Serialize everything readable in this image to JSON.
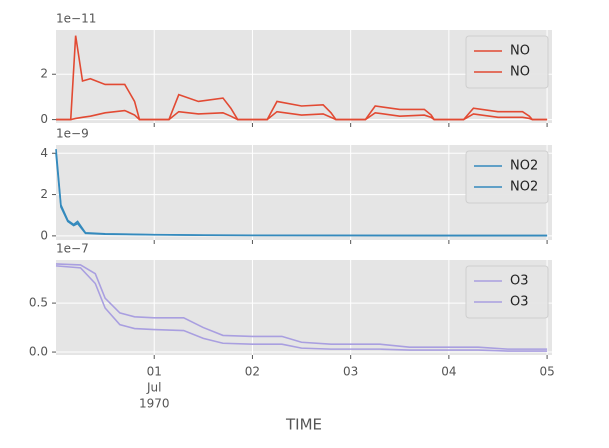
{
  "chart_data": [
    {
      "type": "line",
      "offset_label": "1e−11",
      "legend": "upper right",
      "x": [
        0,
        0.15,
        0.2,
        0.27,
        0.35,
        0.5,
        0.7,
        0.8,
        0.85,
        1.15,
        1.25,
        1.45,
        1.7,
        1.78,
        1.85,
        2.15,
        2.25,
        2.5,
        2.72,
        2.8,
        2.85,
        3.15,
        3.25,
        3.5,
        3.75,
        3.82,
        3.85,
        4.15,
        4.25,
        4.5,
        4.75,
        4.82,
        4.85,
        5.0
      ],
      "series": [
        {
          "name": "NO",
          "color": "#E24A33",
          "values": [
            0,
            0,
            3.7,
            1.7,
            1.8,
            1.55,
            1.55,
            0.8,
            0,
            0,
            1.1,
            0.8,
            0.95,
            0.5,
            0,
            0,
            0.8,
            0.6,
            0.65,
            0.3,
            0,
            0,
            0.6,
            0.45,
            0.45,
            0.2,
            0,
            0,
            0.5,
            0.35,
            0.35,
            0.15,
            0,
            0
          ]
        },
        {
          "name": "NO",
          "color": "#E24A33",
          "values": [
            0,
            0,
            0.05,
            0.1,
            0.15,
            0.3,
            0.4,
            0.2,
            0,
            0,
            0.35,
            0.25,
            0.3,
            0.15,
            0,
            0,
            0.35,
            0.2,
            0.25,
            0.1,
            0,
            0,
            0.3,
            0.15,
            0.2,
            0.1,
            0,
            0,
            0.25,
            0.1,
            0.1,
            0.05,
            0,
            0
          ]
        }
      ],
      "xlim": [
        0,
        5.05
      ],
      "ylim": [
        -0.15,
        3.95
      ],
      "yticks": [
        0,
        2
      ],
      "grid": true
    },
    {
      "type": "line",
      "offset_label": "1e−9",
      "legend": "upper right",
      "x": [
        0,
        0.05,
        0.12,
        0.18,
        0.22,
        0.3,
        0.5,
        1.0,
        1.5,
        2,
        3,
        4,
        5
      ],
      "series": [
        {
          "name": "NO2",
          "color": "#348ABD",
          "values": [
            4.2,
            1.5,
            0.75,
            0.55,
            0.7,
            0.15,
            0.1,
            0.06,
            0.04,
            0.03,
            0.02,
            0.02,
            0.02
          ]
        },
        {
          "name": "NO2",
          "color": "#348ABD",
          "values": [
            4.0,
            1.4,
            0.7,
            0.5,
            0.6,
            0.12,
            0.08,
            0.05,
            0.03,
            0.02,
            0.02,
            0.01,
            0.01
          ]
        }
      ],
      "xlim": [
        0,
        5.05
      ],
      "ylim": [
        -0.2,
        4.4
      ],
      "yticks": [
        0,
        2,
        4
      ],
      "grid": true
    },
    {
      "type": "line",
      "offset_label": "1e−7",
      "legend": "upper right",
      "x": [
        0,
        0.25,
        0.4,
        0.5,
        0.65,
        0.8,
        1.0,
        1.3,
        1.5,
        1.7,
        2.0,
        2.3,
        2.5,
        2.8,
        3.3,
        3.6,
        4.3,
        4.6,
        5.0
      ],
      "series": [
        {
          "name": "O3",
          "color": "#A99FE0",
          "values": [
            0.9,
            0.89,
            0.8,
            0.55,
            0.4,
            0.36,
            0.35,
            0.35,
            0.25,
            0.17,
            0.16,
            0.16,
            0.1,
            0.08,
            0.08,
            0.05,
            0.05,
            0.03,
            0.03
          ]
        },
        {
          "name": "O3",
          "color": "#A99FE0",
          "values": [
            0.88,
            0.86,
            0.7,
            0.45,
            0.28,
            0.24,
            0.23,
            0.22,
            0.14,
            0.09,
            0.08,
            0.08,
            0.04,
            0.03,
            0.03,
            0.02,
            0.02,
            0.01,
            0.01
          ]
        }
      ],
      "xlim": [
        0,
        5.05
      ],
      "ylim": [
        -0.03,
        0.94
      ],
      "yticks": [
        {
          "value": 0,
          "label": "0.0"
        },
        {
          "value": 0.5,
          "label": "0.5"
        }
      ],
      "xticks": [
        {
          "value": 1,
          "label": "01"
        },
        {
          "value": 2,
          "label": "02"
        },
        {
          "value": 3,
          "label": "03"
        },
        {
          "value": 4,
          "label": "04"
        },
        {
          "value": 5,
          "label": "05"
        }
      ],
      "xtick_sublabels": [
        "Jul",
        "1970"
      ],
      "xlabel": "TIME",
      "grid": true
    }
  ]
}
